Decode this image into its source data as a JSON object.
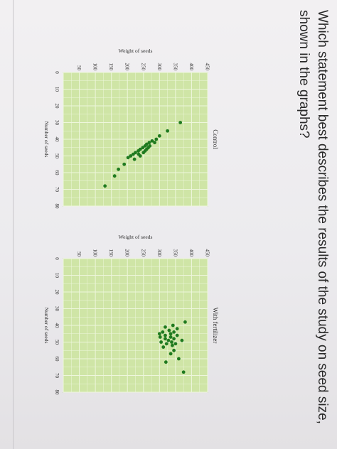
{
  "question": {
    "text": "Which statement best describes the results of the study on seed size, shown in the graphs?"
  },
  "colors": {
    "plot_bg": "#cfe5a6",
    "grid": "#eef6dc",
    "point": "#1f7a1f",
    "axis_text": "#333333"
  },
  "chart_data": [
    {
      "type": "scatter",
      "title": "Control",
      "xlabel": "Number of seeds",
      "ylabel": "Weight of seeds",
      "xlim": [
        0,
        80
      ],
      "ylim": [
        0,
        450
      ],
      "x_ticks": [
        "0",
        "10",
        "20",
        "30",
        "40",
        "50",
        "60",
        "70",
        "80"
      ],
      "y_ticks": [
        "50",
        "100",
        "150",
        "200",
        "250",
        "300",
        "350",
        "400",
        "450"
      ],
      "grid": true,
      "series": [
        {
          "points": [
            {
              "x": 30,
              "y": 365
            },
            {
              "x": 35,
              "y": 325
            },
            {
              "x": 38,
              "y": 300
            },
            {
              "x": 40,
              "y": 290
            },
            {
              "x": 41,
              "y": 277
            },
            {
              "x": 42,
              "y": 268
            },
            {
              "x": 43,
              "y": 260
            },
            {
              "x": 44,
              "y": 255
            },
            {
              "x": 45,
              "y": 248
            },
            {
              "x": 46,
              "y": 240
            },
            {
              "x": 47,
              "y": 234
            },
            {
              "x": 48,
              "y": 225
            },
            {
              "x": 49,
              "y": 218
            },
            {
              "x": 50,
              "y": 210
            },
            {
              "x": 51,
              "y": 202
            },
            {
              "x": 42,
              "y": 285
            },
            {
              "x": 44,
              "y": 270
            },
            {
              "x": 46,
              "y": 260
            },
            {
              "x": 48,
              "y": 250
            },
            {
              "x": 50,
              "y": 240
            },
            {
              "x": 45,
              "y": 265
            },
            {
              "x": 47,
              "y": 255
            },
            {
              "x": 49,
              "y": 235
            },
            {
              "x": 52,
              "y": 222
            },
            {
              "x": 55,
              "y": 190
            },
            {
              "x": 58,
              "y": 172
            },
            {
              "x": 62,
              "y": 160
            },
            {
              "x": 68,
              "y": 130
            }
          ]
        }
      ]
    },
    {
      "type": "scatter",
      "title": "With fertilizer",
      "xlabel": "Number of seeds",
      "ylabel": "Weight of seeds",
      "xlim": [
        0,
        80
      ],
      "ylim": [
        0,
        450
      ],
      "x_ticks": [
        "0",
        "10",
        "20",
        "30",
        "40",
        "50",
        "60",
        "70",
        "80"
      ],
      "y_ticks": [
        "50",
        "100",
        "150",
        "200",
        "250",
        "300",
        "350",
        "400",
        "450"
      ],
      "grid": true,
      "series": [
        {
          "points": [
            {
              "x": 38,
              "y": 380
            },
            {
              "x": 40,
              "y": 342
            },
            {
              "x": 41,
              "y": 318
            },
            {
              "x": 42,
              "y": 355
            },
            {
              "x": 43,
              "y": 330
            },
            {
              "x": 44,
              "y": 345
            },
            {
              "x": 44,
              "y": 310
            },
            {
              "x": 45,
              "y": 300
            },
            {
              "x": 45,
              "y": 335
            },
            {
              "x": 46,
              "y": 318
            },
            {
              "x": 46,
              "y": 355
            },
            {
              "x": 47,
              "y": 335
            },
            {
              "x": 47,
              "y": 302
            },
            {
              "x": 48,
              "y": 345
            },
            {
              "x": 48,
              "y": 318
            },
            {
              "x": 49,
              "y": 328
            },
            {
              "x": 49,
              "y": 370
            },
            {
              "x": 50,
              "y": 338
            },
            {
              "x": 50,
              "y": 305
            },
            {
              "x": 51,
              "y": 350
            },
            {
              "x": 51,
              "y": 322
            },
            {
              "x": 52,
              "y": 340
            },
            {
              "x": 53,
              "y": 312
            },
            {
              "x": 55,
              "y": 345
            },
            {
              "x": 57,
              "y": 335
            },
            {
              "x": 60,
              "y": 360
            },
            {
              "x": 62,
              "y": 320
            },
            {
              "x": 68,
              "y": 375
            }
          ]
        }
      ]
    }
  ]
}
